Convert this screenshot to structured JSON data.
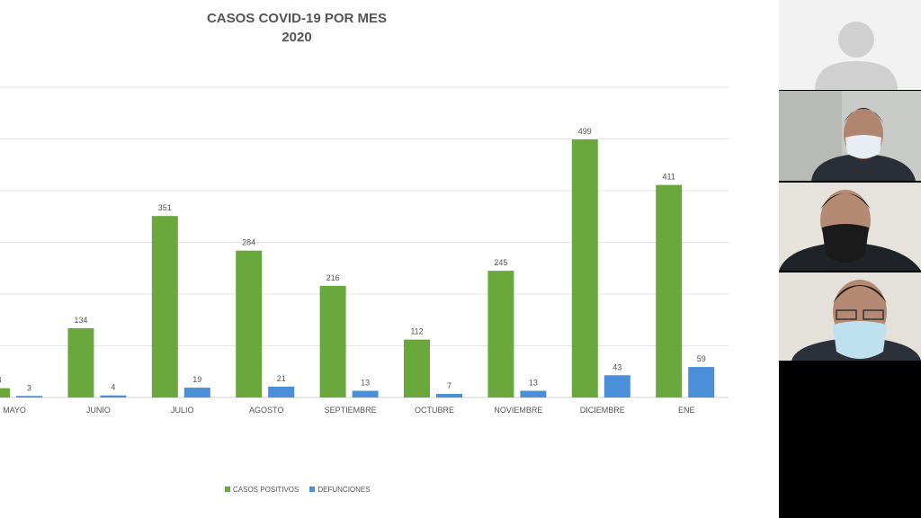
{
  "chart_data": {
    "type": "bar",
    "title": "CASOS COVID-19 POR MES",
    "subtitle": "2020",
    "categories": [
      "MAYO",
      "JUNIO",
      "JULIO",
      "AGOSTO",
      "SEPTIEMBRE",
      "OCTUBRE",
      "NOVIEMBRE",
      "DICIEMBRE",
      "ENE"
    ],
    "series": [
      {
        "name": "CASOS POSITIVOS",
        "color": "#6aa83e",
        "values": [
          18,
          134,
          351,
          284,
          216,
          112,
          245,
          499,
          411
        ]
      },
      {
        "name": "DEFUNCIONES",
        "color": "#4a8fd8",
        "values": [
          3,
          4,
          19,
          21,
          13,
          7,
          13,
          43,
          59
        ]
      }
    ],
    "ylim": [
      0,
      600
    ],
    "grid": true,
    "legend": "bottom",
    "xlabel": "",
    "ylabel": ""
  },
  "participants": [
    {
      "name": "participant-1",
      "video": false
    },
    {
      "name": "participant-2",
      "video": true
    },
    {
      "name": "participant-3",
      "video": true
    },
    {
      "name": "participant-4",
      "video": true
    }
  ]
}
